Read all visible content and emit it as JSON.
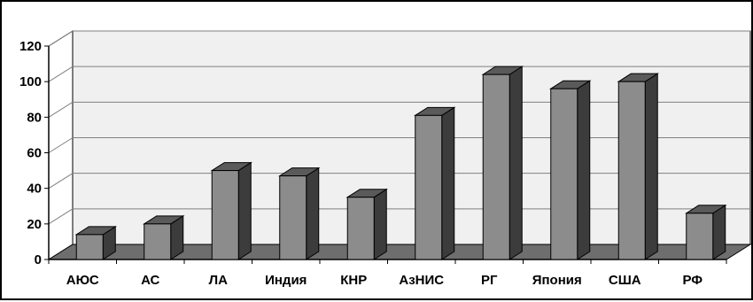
{
  "chart_data": {
    "type": "bar",
    "categories": [
      "АЮС",
      "АС",
      "ЛА",
      "Индия",
      "КНР",
      "АзНИС",
      "РГ",
      "Япония",
      "США",
      "РФ"
    ],
    "values": [
      14,
      20,
      50,
      47,
      35,
      81,
      104,
      96,
      100,
      26
    ],
    "yticks": [
      0,
      20,
      40,
      60,
      80,
      100,
      120
    ],
    "ylim": [
      0,
      120
    ],
    "grid": true,
    "legend": "none",
    "style": "3d-column",
    "colors": {
      "bar_front": "#8c8c8c",
      "bar_side": "#3c3c3c",
      "bar_top": "#5a5a5a",
      "floor": "#6e6e6e",
      "back_wall": "#f0f0f0",
      "gridline": "#808080"
    }
  }
}
